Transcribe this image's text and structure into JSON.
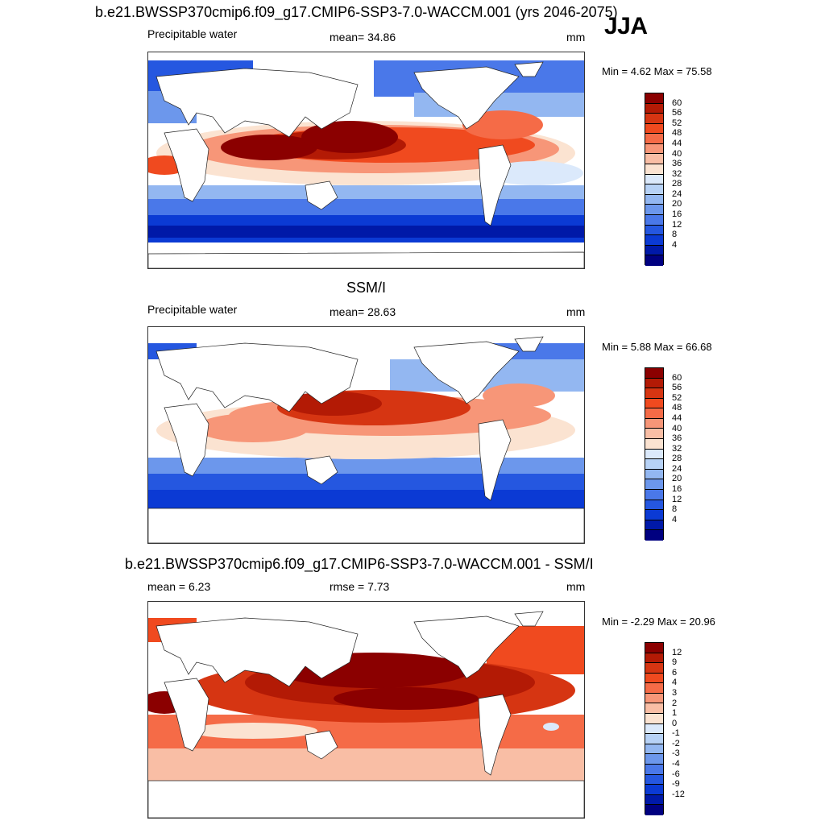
{
  "header": {
    "title": "b.e21.BWSSP370cmip6.f09_g17.CMIP6-SSP3-7.0-WACCM.001 (yrs 2046-2075)",
    "season": "JJA"
  },
  "panels": [
    {
      "id": "model",
      "title": "",
      "left_label": "Precipitable water",
      "center_label": "mean=  34.86",
      "units": "mm",
      "minmax": "Min =   4.62 Max =  75.58",
      "colorbar": {
        "colors": [
          "#8b0000",
          "#b31a05",
          "#d63512",
          "#f04a1f",
          "#f56b47",
          "#f79678",
          "#f9bea5",
          "#fbe3d1",
          "#dbe9fb",
          "#b7d2f6",
          "#93b7f1",
          "#6c97ec",
          "#4a78e9",
          "#2557e0",
          "#0b3ad4",
          "#0019a8",
          "#000080"
        ],
        "labels": [
          "60",
          "56",
          "52",
          "48",
          "44",
          "40",
          "36",
          "32",
          "28",
          "24",
          "20",
          "16",
          "12",
          "8",
          "4"
        ]
      }
    },
    {
      "id": "obs",
      "title": "SSM/I",
      "left_label": "Precipitable water",
      "center_label": "mean=  28.63",
      "units": "mm",
      "minmax": "Min =   5.88 Max =  66.68",
      "colorbar": {
        "colors": [
          "#8b0000",
          "#b31a05",
          "#d63512",
          "#f04a1f",
          "#f56b47",
          "#f79678",
          "#f9bea5",
          "#fbe3d1",
          "#dbe9fb",
          "#b7d2f6",
          "#93b7f1",
          "#6c97ec",
          "#4a78e9",
          "#2557e0",
          "#0b3ad4",
          "#0019a8",
          "#000080"
        ],
        "labels": [
          "60",
          "56",
          "52",
          "48",
          "44",
          "40",
          "36",
          "32",
          "28",
          "24",
          "20",
          "16",
          "12",
          "8",
          "4"
        ]
      }
    },
    {
      "id": "diff",
      "title": "b.e21.BWSSP370cmip6.f09_g17.CMIP6-SSP3-7.0-WACCM.001 - SSM/I",
      "left_label": "mean =   6.23",
      "center_label": "rmse =   7.73",
      "units": "mm",
      "minmax": "Min =  -2.29 Max =  20.96",
      "colorbar": {
        "colors": [
          "#8b0000",
          "#b31a05",
          "#d63512",
          "#f04a1f",
          "#f56b47",
          "#f79678",
          "#f9bea5",
          "#fbe3d1",
          "#dbe9fb",
          "#b7d2f6",
          "#93b7f1",
          "#6c97ec",
          "#4a78e9",
          "#2557e0",
          "#0b3ad4",
          "#0019a8",
          "#000080"
        ],
        "labels": [
          "12",
          "9",
          "6",
          "4",
          "3",
          "2",
          "1",
          "0",
          "-1",
          "-2",
          "-3",
          "-4",
          "-6",
          "-9",
          "-12"
        ]
      }
    }
  ]
}
